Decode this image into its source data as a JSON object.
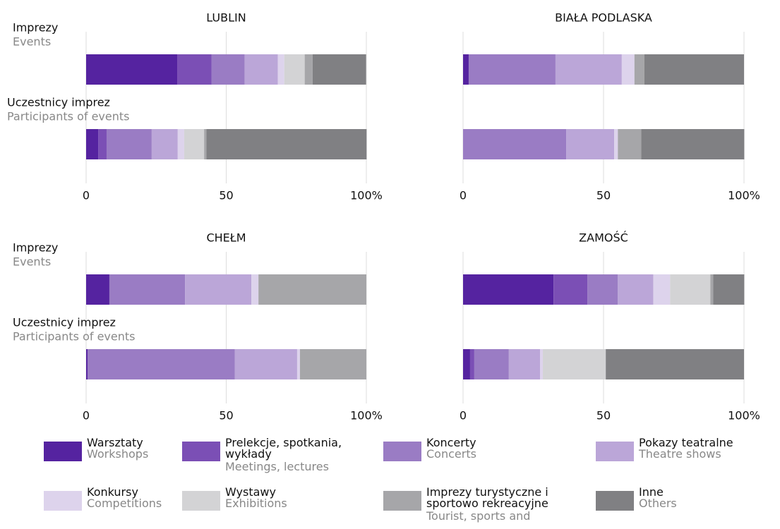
{
  "chart_data": [
    {
      "type": "stacked-bar",
      "title": "LUBLIN",
      "categories": [
        "Imprezy",
        "Uczestnicy imprez"
      ],
      "category_subtitles": [
        "Events",
        "Participants of events"
      ],
      "xlim": [
        0,
        100
      ],
      "xticks": [
        0,
        50,
        {
          "value": 100,
          "label": "100%"
        }
      ],
      "grid": true,
      "series": [
        {
          "name": "Warsztaty",
          "name_en": "Workshops",
          "color": "#5523a0",
          "values": [
            32.5,
            4.3
          ]
        },
        {
          "name": "Prelekcje, spotkania, wykłady",
          "name_en": "Meetings, lectures",
          "color": "#7b4fb5",
          "values": [
            12.3,
            3.0
          ]
        },
        {
          "name": "Koncerty",
          "name_en": "Concerts",
          "color": "#9a7cc4",
          "values": [
            11.8,
            16.1
          ]
        },
        {
          "name": "Pokazy teatralne",
          "name_en": "Theatre shows",
          "color": "#bba6d8",
          "values": [
            11.8,
            9.3
          ]
        },
        {
          "name": "Konkursy",
          "name_en": "Competitions",
          "color": "#ddd3ec",
          "values": [
            2.3,
            2.3
          ]
        },
        {
          "name": "Wystawy",
          "name_en": "Exhibitions",
          "color": "#d3d3d5",
          "values": [
            7.3,
            7.1
          ]
        },
        {
          "name": "Imprezy turystyczne i sportowo rekreacyjne",
          "name_en": "Tourist, sports and",
          "color": "#a6a6a9",
          "values": [
            2.8,
            0.8
          ]
        },
        {
          "name": "Inne",
          "name_en": "Others",
          "color": "#808083",
          "values": [
            19.1,
            57.2
          ]
        }
      ]
    },
    {
      "type": "stacked-bar",
      "title": "BIAŁA PODLASKA",
      "xlim": [
        0,
        100
      ],
      "xticks": [
        0,
        50,
        {
          "value": 100,
          "label": "100%"
        }
      ],
      "grid": true,
      "series": [
        {
          "name": "Warsztaty",
          "color": "#5523a0",
          "values": [
            2.0,
            0
          ]
        },
        {
          "name": "Prelekcje, spotkania, wykłady",
          "color": "#7b4fb5",
          "values": [
            0,
            0
          ]
        },
        {
          "name": "Koncerty",
          "color": "#9a7cc4",
          "values": [
            30.9,
            36.7
          ]
        },
        {
          "name": "Pokazy teatralne",
          "color": "#bba6d8",
          "values": [
            23.6,
            17.1
          ]
        },
        {
          "name": "Konkursy",
          "color": "#ddd3ec",
          "values": [
            4.5,
            1.3
          ]
        },
        {
          "name": "Wystawy",
          "color": "#d3d3d5",
          "values": [
            0,
            0
          ]
        },
        {
          "name": "Imprezy turystyczne i sportowo rekreacyjne",
          "color": "#a6a6a9",
          "values": [
            3.5,
            8.3
          ]
        },
        {
          "name": "Inne",
          "color": "#808083",
          "values": [
            35.5,
            36.7
          ]
        }
      ]
    },
    {
      "type": "stacked-bar",
      "title": "CHEŁM",
      "categories": [
        "Imprezy",
        "Uczestnicy imprez"
      ],
      "category_subtitles": [
        "Events",
        "Participants of events"
      ],
      "xlim": [
        0,
        100
      ],
      "xticks": [
        0,
        50,
        {
          "value": 100,
          "label": "100%"
        }
      ],
      "grid": true,
      "series": [
        {
          "name": "Warsztaty",
          "color": "#5523a0",
          "values": [
            8.3,
            0.5
          ]
        },
        {
          "name": "Prelekcje, spotkania, wykłady",
          "color": "#7b4fb5",
          "values": [
            0,
            0
          ]
        },
        {
          "name": "Koncerty",
          "color": "#9a7cc4",
          "values": [
            27.0,
            52.6
          ]
        },
        {
          "name": "Pokazy teatralne",
          "color": "#bba6d8",
          "values": [
            23.7,
            22.2
          ]
        },
        {
          "name": "Konkursy",
          "color": "#ddd3ec",
          "values": [
            2.5,
            1.0
          ]
        },
        {
          "name": "Wystawy",
          "color": "#d3d3d5",
          "values": [
            0,
            0
          ]
        },
        {
          "name": "Imprezy turystyczne i sportowo rekreacyjne",
          "color": "#a6a6a9",
          "values": [
            38.5,
            23.7
          ]
        },
        {
          "name": "Inne",
          "color": "#808083",
          "values": [
            0,
            0
          ]
        }
      ]
    },
    {
      "type": "stacked-bar",
      "title": "ZAMOŚĆ",
      "xlim": [
        0,
        100
      ],
      "xticks": [
        0,
        50,
        {
          "value": 100,
          "label": "100%"
        }
      ],
      "grid": true,
      "series": [
        {
          "name": "Warsztaty",
          "color": "#5523a0",
          "values": [
            32.2,
            2.5
          ]
        },
        {
          "name": "Prelekcje, spotkania, wykłady",
          "color": "#7b4fb5",
          "values": [
            12.1,
            1.5
          ]
        },
        {
          "name": "Koncerty",
          "color": "#9a7cc4",
          "values": [
            10.8,
            12.3
          ]
        },
        {
          "name": "Pokazy teatralne",
          "color": "#bba6d8",
          "values": [
            12.6,
            11.1
          ]
        },
        {
          "name": "Konkursy",
          "color": "#ddd3ec",
          "values": [
            6.0,
            1.0
          ]
        },
        {
          "name": "Wystawy",
          "color": "#d3d3d5",
          "values": [
            14.3,
            22.4
          ]
        },
        {
          "name": "Imprezy turystyczne i sportowo rekreacyjne",
          "color": "#a6a6a9",
          "values": [
            1.0,
            0
          ]
        },
        {
          "name": "Inne",
          "color": "#808083",
          "values": [
            11.1,
            49.2
          ]
        }
      ]
    }
  ]
}
